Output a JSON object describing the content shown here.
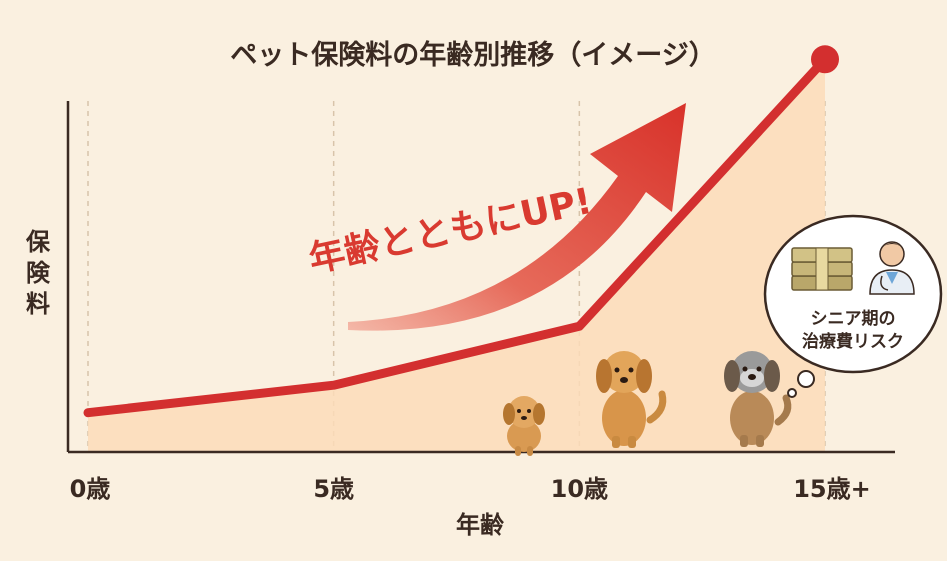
{
  "chart_data": {
    "type": "area",
    "title": "ペット保険料の年齢別推移（イメージ）",
    "xlabel": "年齢",
    "ylabel": "保険料",
    "x": [
      0,
      5,
      10,
      15
    ],
    "tick_labels": [
      "0歳",
      "5歳",
      "10歳",
      "15歳+"
    ],
    "series": [
      {
        "values": [
          10,
          17,
          32,
          100
        ]
      }
    ],
    "ylim": [
      0,
      110
    ],
    "grid": "vertical dashed",
    "line_color": "#d32f2f",
    "fill_color": "#fbdcb8",
    "annotation": "年齢とともにUP!",
    "callout": {
      "line1": "シニア期の",
      "line2": "治療費リスク"
    },
    "illustrations": [
      "puppy-icon",
      "adult-dog-icon",
      "senior-dog-icon",
      "money-stack-icon",
      "doctor-icon"
    ]
  }
}
